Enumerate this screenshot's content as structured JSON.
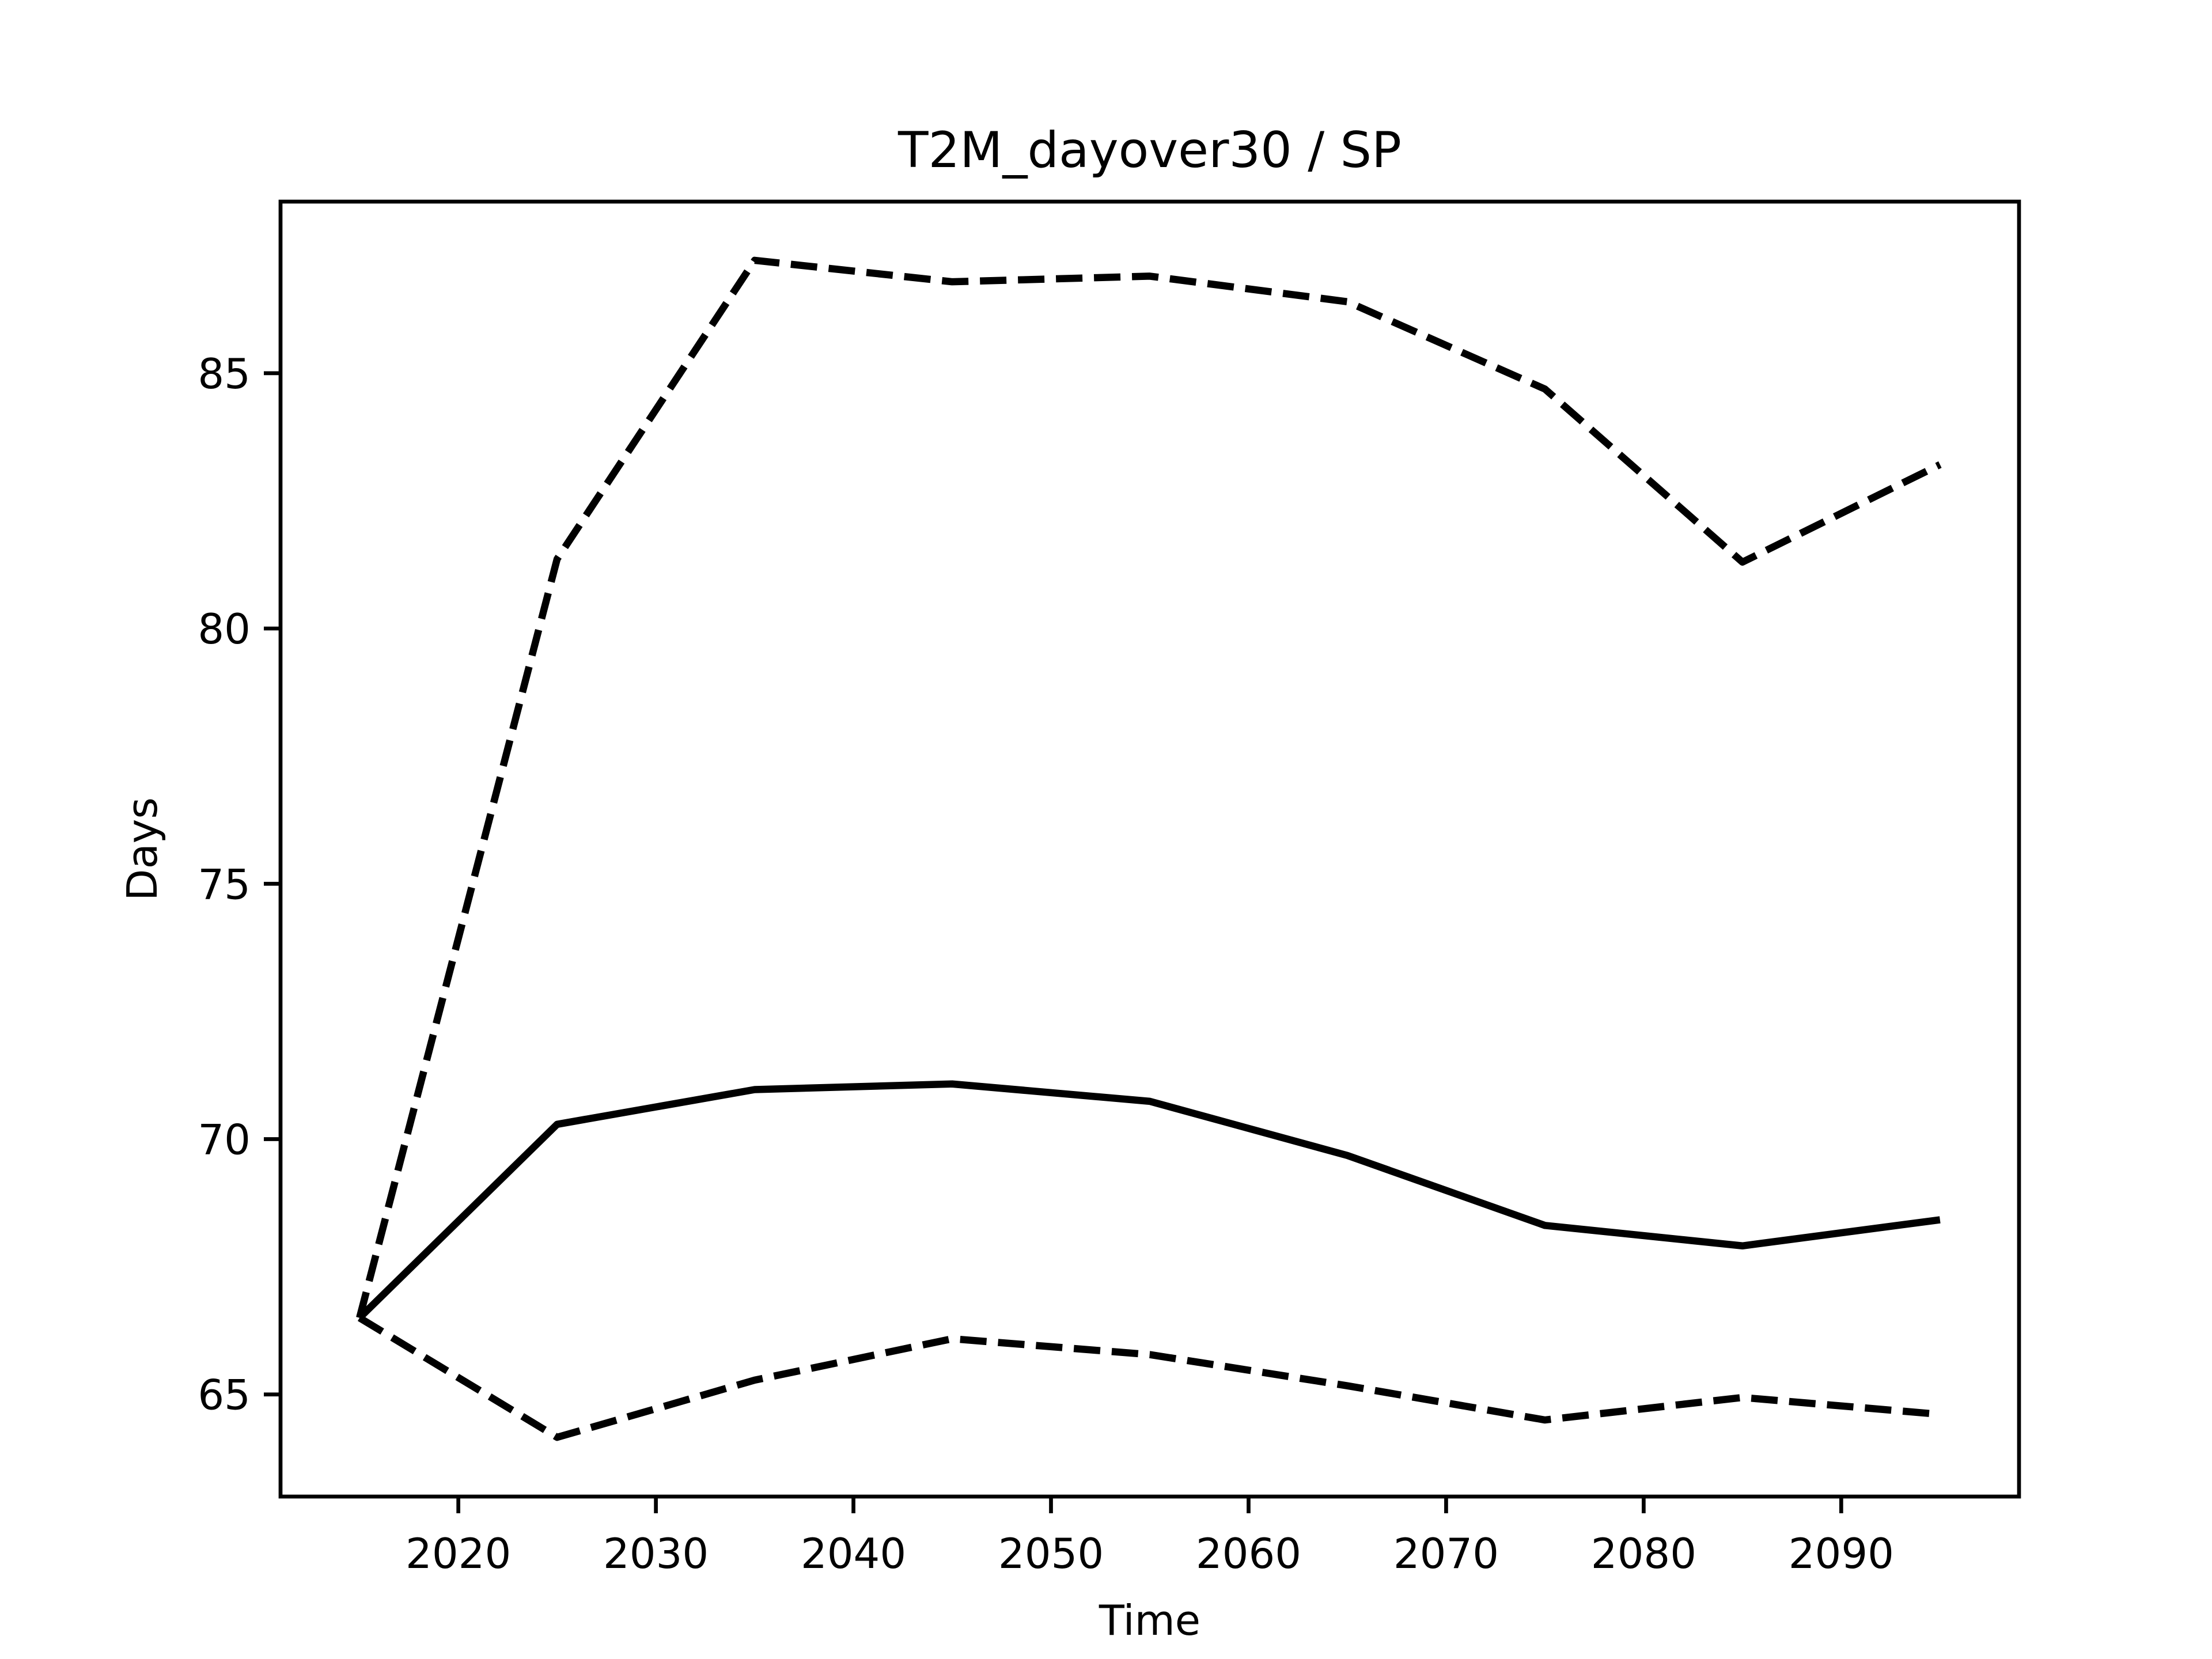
{
  "chart_data": {
    "type": "line",
    "title": "T2M_dayover30 / SP",
    "xlabel": "Time",
    "ylabel": "Days",
    "x": [
      2015,
      2025,
      2035,
      2045,
      2055,
      2065,
      2075,
      2085,
      2095
    ],
    "series": [
      {
        "color": "#000000",
        "linestyle": "solid",
        "values": [
          66.5,
          70.29,
          70.97,
          71.08,
          70.74,
          69.68,
          68.31,
          67.91,
          68.42
        ]
      },
      {
        "color": "#000000",
        "linestyle": "dashed",
        "values": [
          66.5,
          81.36,
          87.21,
          86.79,
          86.9,
          86.4,
          84.69,
          81.3,
          83.21
        ]
      },
      {
        "color": "#000000",
        "linestyle": "dashed",
        "values": [
          66.5,
          64.16,
          65.28,
          66.09,
          65.78,
          65.17,
          64.5,
          64.94,
          64.61
        ]
      }
    ],
    "xlim": [
      2011,
      2099
    ],
    "ylim": [
      63.0,
      88.36
    ],
    "xticks": [
      2020,
      2030,
      2040,
      2050,
      2060,
      2070,
      2080,
      2090
    ],
    "yticks": [
      65,
      70,
      75,
      80,
      85
    ],
    "grid": false
  }
}
